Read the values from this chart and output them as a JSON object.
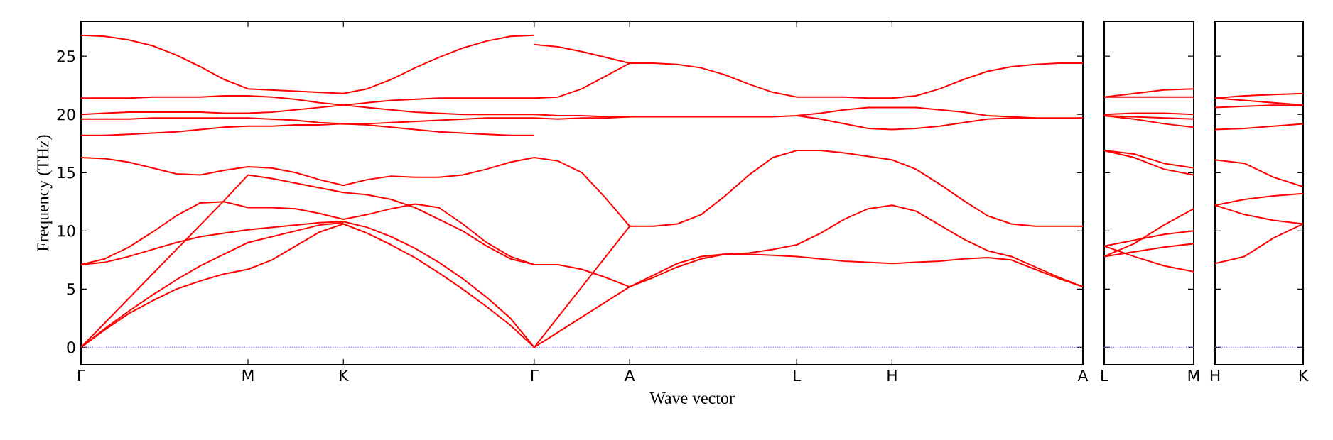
{
  "chart_data": [
    {
      "type": "line",
      "xlabel": "Wave vector",
      "ylabel": "Frequency (THz)",
      "ylim": [
        -1.5,
        28
      ],
      "marker": "none",
      "line_style": "solid",
      "categories": [
        "Γ",
        null,
        null,
        null,
        null,
        null,
        null,
        "M",
        null,
        null,
        null,
        "K",
        null,
        null,
        null,
        null,
        null,
        null,
        null,
        "Γ",
        null,
        null,
        null,
        "A",
        null,
        null,
        null,
        null,
        null,
        null,
        "L",
        null,
        null,
        null,
        "H",
        null,
        null,
        null,
        null,
        null,
        null,
        null,
        "A"
      ],
      "yticks": [
        0,
        5,
        10,
        15,
        20,
        25
      ],
      "ref_lines": [
        {
          "axis": "y",
          "value": 0,
          "color": "#7777ff",
          "line_style": "dotted"
        }
      ],
      "series": [
        {
          "color": "#ff0000",
          "values": [
            26.8,
            26.7,
            26.4,
            25.9,
            25.1,
            24.1,
            23.0,
            22.2,
            22.1,
            22.0,
            21.9,
            21.8,
            22.2,
            23.0,
            24.0,
            24.9,
            25.7,
            26.3,
            26.7,
            26.8,
            null,
            null,
            null,
            null,
            null,
            null,
            null,
            null,
            null,
            null,
            null,
            null,
            null,
            null,
            null,
            null,
            null,
            null,
            null,
            null,
            null,
            null,
            null
          ]
        },
        {
          "color": "#ff0000",
          "values": [
            null,
            null,
            null,
            null,
            null,
            null,
            null,
            null,
            null,
            null,
            null,
            null,
            null,
            null,
            null,
            null,
            null,
            null,
            null,
            26.0,
            25.8,
            25.4,
            24.9,
            24.4,
            24.4,
            24.3,
            24.0,
            23.4,
            22.6,
            21.9,
            21.5,
            21.5,
            21.5,
            21.4,
            21.4,
            21.6,
            22.2,
            23.0,
            23.7,
            24.1,
            24.3,
            24.4,
            24.4
          ]
        },
        {
          "color": "#ff0000",
          "values": [
            21.4,
            21.4,
            21.4,
            21.5,
            21.5,
            21.5,
            21.6,
            21.6,
            21.5,
            21.3,
            21.0,
            20.8,
            21.0,
            21.2,
            21.3,
            21.4,
            21.4,
            21.4,
            21.4,
            21.4,
            21.5,
            22.2,
            23.3,
            24.4,
            null,
            null,
            null,
            null,
            null,
            null,
            null,
            null,
            null,
            null,
            null,
            null,
            null,
            null,
            null,
            null,
            null,
            null,
            null
          ]
        },
        {
          "color": "#ff0000",
          "values": [
            20.0,
            20.1,
            20.2,
            20.2,
            20.2,
            20.2,
            20.1,
            20.1,
            20.2,
            20.4,
            20.6,
            20.8,
            20.6,
            20.4,
            20.2,
            20.1,
            20.0,
            20.0,
            20.0,
            20.0,
            19.9,
            19.9,
            19.8,
            19.8,
            19.8,
            19.8,
            19.8,
            19.8,
            19.8,
            19.8,
            19.9,
            20.1,
            20.4,
            20.6,
            20.6,
            20.6,
            20.4,
            20.2,
            19.9,
            19.8,
            19.7,
            19.7,
            19.7
          ]
        },
        {
          "color": "#ff0000",
          "values": [
            19.6,
            19.6,
            19.6,
            19.7,
            19.7,
            19.7,
            19.7,
            19.7,
            19.6,
            19.5,
            19.3,
            19.2,
            19.2,
            19.3,
            19.4,
            19.5,
            19.6,
            19.7,
            19.7,
            19.7,
            19.6,
            19.7,
            19.7,
            19.8,
            null,
            null,
            null,
            null,
            null,
            null,
            19.9,
            19.6,
            19.2,
            18.8,
            18.7,
            18.8,
            19.0,
            19.3,
            19.6,
            19.7,
            19.7,
            null,
            null
          ]
        },
        {
          "color": "#ff0000",
          "values": [
            18.2,
            18.2,
            18.3,
            18.4,
            18.5,
            18.7,
            18.9,
            19.0,
            19.0,
            19.1,
            19.1,
            19.2,
            19.1,
            18.9,
            18.7,
            18.5,
            18.4,
            18.3,
            18.2,
            18.2,
            null,
            null,
            null,
            null,
            null,
            null,
            null,
            null,
            null,
            null,
            null,
            null,
            null,
            null,
            null,
            null,
            null,
            null,
            null,
            null,
            null,
            null,
            null
          ]
        },
        {
          "color": "#ff0000",
          "values": [
            16.3,
            16.2,
            15.9,
            15.4,
            14.9,
            14.8,
            15.2,
            15.5,
            15.4,
            15.0,
            14.4,
            13.9,
            14.4,
            14.7,
            14.6,
            14.6,
            14.8,
            15.3,
            15.9,
            16.3,
            16.0,
            15.0,
            12.8,
            10.4,
            10.4,
            10.6,
            11.4,
            13.0,
            14.8,
            16.3,
            16.9,
            16.9,
            16.7,
            16.4,
            16.1,
            15.3,
            14.0,
            12.6,
            11.3,
            10.6,
            10.4,
            10.4,
            10.4
          ]
        },
        {
          "color": "#ff0000",
          "values": [
            0,
            2.1,
            4.2,
            6.3,
            8.4,
            10.5,
            12.6,
            14.8,
            14.5,
            14.1,
            13.7,
            13.3,
            13.1,
            12.7,
            12.0,
            11.0,
            10.0,
            8.7,
            7.6,
            7.1,
            null,
            null,
            null,
            null,
            null,
            null,
            null,
            null,
            null,
            null,
            null,
            null,
            null,
            null,
            null,
            null,
            null,
            null,
            null,
            null,
            null,
            null,
            null
          ]
        },
        {
          "color": "#ff0000",
          "values": [
            7.1,
            7.6,
            8.6,
            9.9,
            11.3,
            12.4,
            12.5,
            12.0,
            12.0,
            11.9,
            11.5,
            11.0,
            11.4,
            11.9,
            12.3,
            12.0,
            10.6,
            9.0,
            7.8,
            7.1,
            7.1,
            6.7,
            6.0,
            5.2,
            6.2,
            7.2,
            7.8,
            8.0,
            8.1,
            8.4,
            8.8,
            9.8,
            11.0,
            11.9,
            12.2,
            11.7,
            10.5,
            9.3,
            8.3,
            7.8,
            6.9,
            6.0,
            5.2
          ]
        },
        {
          "color": "#ff0000",
          "values": [
            7.1,
            7.3,
            7.8,
            8.4,
            9.0,
            9.5,
            9.8,
            10.1,
            10.3,
            10.5,
            10.7,
            10.8,
            10.3,
            9.5,
            8.5,
            7.3,
            5.9,
            4.3,
            2.5,
            0,
            2.6,
            5.2,
            7.8,
            10.4,
            null,
            null,
            null,
            null,
            null,
            null,
            null,
            null,
            null,
            null,
            null,
            null,
            null,
            null,
            null,
            null,
            null,
            null,
            null
          ]
        },
        {
          "color": "#ff0000",
          "values": [
            0,
            1.6,
            3.1,
            4.5,
            5.8,
            7.0,
            8.0,
            9.0,
            9.5,
            10.0,
            10.5,
            10.7,
            null,
            null,
            null,
            null,
            null,
            null,
            null,
            null,
            null,
            null,
            null,
            null,
            null,
            null,
            null,
            null,
            null,
            null,
            null,
            null,
            null,
            null,
            null,
            null,
            null,
            null,
            null,
            null,
            null,
            null,
            null
          ]
        },
        {
          "color": "#ff0000",
          "values": [
            0,
            1.5,
            2.9,
            4.0,
            5.0,
            5.7,
            6.3,
            6.7,
            7.5,
            8.7,
            9.9,
            10.6,
            9.8,
            8.8,
            7.7,
            6.4,
            5.0,
            3.5,
            1.9,
            0,
            1.3,
            2.6,
            3.9,
            5.2,
            6.0,
            6.9,
            7.6,
            8.0,
            8.0,
            7.9,
            7.8,
            7.6,
            7.4,
            7.3,
            7.2,
            7.3,
            7.4,
            7.6,
            7.7,
            7.5,
            6.7,
            5.9,
            5.2
          ]
        }
      ]
    },
    {
      "type": "line",
      "ylim": [
        -1.5,
        28
      ],
      "tick_labels": "x",
      "marker": "none",
      "line_style": "solid",
      "categories": [
        "L",
        null,
        null,
        "M"
      ],
      "yticks": [
        {
          "value": 0,
          "label": null
        },
        {
          "value": 5,
          "label": null
        },
        {
          "value": 10,
          "label": null
        },
        {
          "value": 15,
          "label": null
        },
        {
          "value": 20,
          "label": null
        },
        {
          "value": 25,
          "label": null
        }
      ],
      "ref_lines": [
        {
          "axis": "y",
          "value": 0,
          "color": "#7777ff",
          "line_style": "dotted"
        }
      ],
      "series": [
        {
          "color": "#ff0000",
          "values": [
            21.5,
            21.8,
            22.1,
            22.2
          ]
        },
        {
          "color": "#ff0000",
          "values": [
            21.5,
            21.5,
            21.5,
            21.5
          ]
        },
        {
          "color": "#ff0000",
          "values": [
            20.0,
            20.1,
            20.1,
            20.0
          ]
        },
        {
          "color": "#ff0000",
          "values": [
            19.9,
            19.8,
            19.7,
            19.6
          ]
        },
        {
          "color": "#ff0000",
          "values": [
            19.9,
            19.6,
            19.2,
            18.9
          ]
        },
        {
          "color": "#ff0000",
          "values": [
            16.9,
            16.6,
            15.8,
            15.4
          ]
        },
        {
          "color": "#ff0000",
          "values": [
            16.9,
            16.3,
            15.3,
            14.8
          ]
        },
        {
          "color": "#ff0000",
          "values": [
            7.8,
            8.9,
            10.5,
            11.9
          ]
        },
        {
          "color": "#ff0000",
          "values": [
            8.7,
            9.2,
            9.7,
            10.0
          ]
        },
        {
          "color": "#ff0000",
          "values": [
            7.8,
            8.2,
            8.6,
            8.9
          ]
        },
        {
          "color": "#ff0000",
          "values": [
            8.7,
            7.8,
            7.0,
            6.5
          ]
        }
      ]
    },
    {
      "type": "line",
      "ylim": [
        -1.5,
        28
      ],
      "tick_labels": "x",
      "marker": "none",
      "line_style": "solid",
      "categories": [
        "H",
        null,
        null,
        "K"
      ],
      "yticks": [
        {
          "value": 0,
          "label": null
        },
        {
          "value": 5,
          "label": null
        },
        {
          "value": 10,
          "label": null
        },
        {
          "value": 15,
          "label": null
        },
        {
          "value": 20,
          "label": null
        },
        {
          "value": 25,
          "label": null
        }
      ],
      "ref_lines": [
        {
          "axis": "y",
          "value": 0,
          "color": "#7777ff",
          "line_style": "dotted"
        }
      ],
      "series": [
        {
          "color": "#ff0000",
          "values": [
            21.4,
            21.6,
            21.7,
            21.8
          ]
        },
        {
          "color": "#ff0000",
          "values": [
            21.4,
            21.2,
            21.0,
            20.8
          ]
        },
        {
          "color": "#ff0000",
          "values": [
            20.6,
            20.7,
            20.8,
            20.8
          ]
        },
        {
          "color": "#ff0000",
          "values": [
            18.7,
            18.8,
            19.0,
            19.2
          ]
        },
        {
          "color": "#ff0000",
          "values": [
            16.1,
            15.8,
            14.6,
            13.8
          ]
        },
        {
          "color": "#ff0000",
          "values": [
            12.2,
            12.7,
            13.0,
            13.2
          ]
        },
        {
          "color": "#ff0000",
          "values": [
            12.2,
            11.4,
            10.9,
            10.6
          ]
        },
        {
          "color": "#ff0000",
          "values": [
            7.2,
            7.8,
            9.4,
            10.6
          ]
        }
      ]
    }
  ]
}
